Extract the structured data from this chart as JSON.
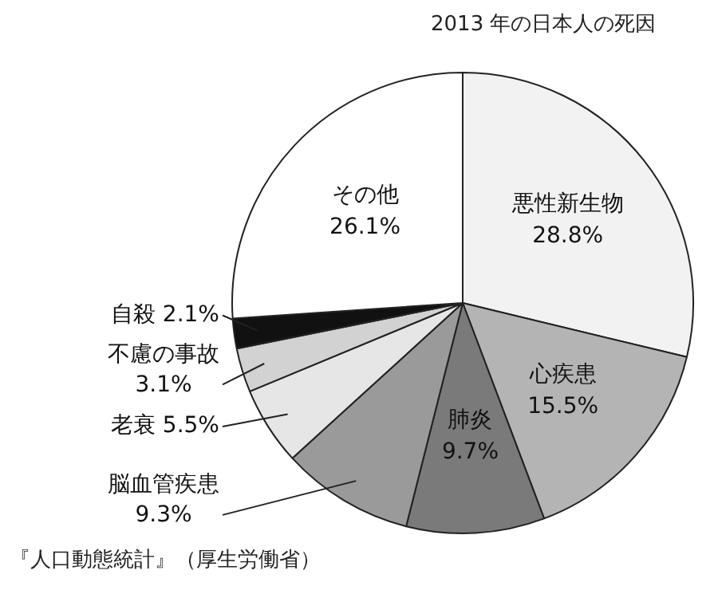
{
  "chart_data": {
    "type": "pie",
    "title": "2013 年の日本人の死因",
    "categories": [
      "悪性新生物",
      "心疾患",
      "肺炎",
      "脳血管疾患",
      "老衰",
      "不慮の事故",
      "自殺",
      "その他"
    ],
    "values": [
      28.8,
      15.5,
      9.7,
      9.3,
      5.5,
      3.1,
      2.1,
      26.1
    ],
    "value_labels": [
      "28.8%",
      "15.5%",
      "9.7%",
      "9.3%",
      "5.5%",
      "3.1%",
      "2.1%",
      "26.1%"
    ],
    "colors": [
      "#f2f2f2",
      "#b4b4b4",
      "#7a7a7a",
      "#9a9a9a",
      "#e6e6e6",
      "#d2d2d2",
      "#111111",
      "#ffffff"
    ],
    "legend": false,
    "annotations": [
      "『人口動態統計』（厚生労働省）"
    ]
  }
}
